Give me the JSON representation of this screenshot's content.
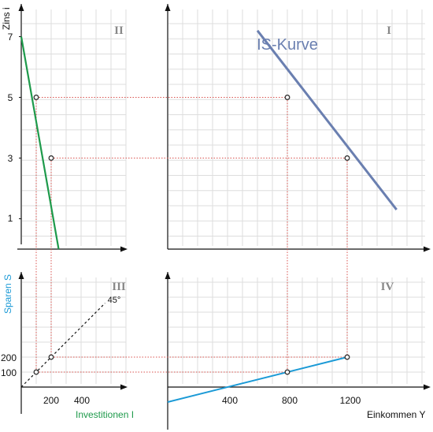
{
  "chart_data": {
    "type": "line",
    "title": "",
    "grid": true,
    "colors": {
      "is_curve": "#6a7fb0",
      "investment": "#1e9a4b",
      "savings": "#1b9ad6",
      "guide": "#d9534f",
      "axis": "#111111",
      "grid": "#dddddd",
      "quadrant_label": "#888888"
    },
    "quadrant_labels": [
      "I",
      "II",
      "III",
      "IV"
    ],
    "axis_labels": {
      "zins": "Zins i",
      "sparen": "Sparen S",
      "investitionen": "Investitionen I",
      "einkommen": "Einkommen Y"
    },
    "ticks": {
      "zins": [
        "1",
        "3",
        "5",
        "7"
      ],
      "sparen": [
        "100",
        "200"
      ],
      "investitionen": [
        "200",
        "400"
      ],
      "einkommen": [
        "400",
        "800",
        "1200"
      ]
    },
    "annotations": {
      "is_label": "IS-Kurve",
      "diagonal_label": "45°"
    },
    "quadrants": {
      "I": {
        "name": "IS-Kurve",
        "x_label": "Einkommen Y",
        "y_label": "Zins i",
        "points": [
          {
            "x": 800,
            "y": 5
          },
          {
            "x": 1200,
            "y": 3
          }
        ],
        "line": [
          {
            "x": 600,
            "y": 7.2
          },
          {
            "x": 1530,
            "y": 1.3
          }
        ]
      },
      "II": {
        "name": "Investitionen I",
        "x_label": "Investitionen I",
        "y_label": "Zins i",
        "points": [
          {
            "x": 100,
            "y": 5
          },
          {
            "x": 200,
            "y": 3
          }
        ],
        "line": [
          {
            "x": 0,
            "y": 7
          },
          {
            "x": 250,
            "y": 0
          }
        ]
      },
      "III": {
        "name": "45°",
        "x_label": "Investitionen I",
        "y_label": "Sparen S",
        "points": [
          {
            "x": 100,
            "y": 100
          },
          {
            "x": 200,
            "y": 200
          }
        ],
        "line": [
          {
            "x": 0,
            "y": 0
          },
          {
            "x": 560,
            "y": 560
          }
        ]
      },
      "IV": {
        "name": "Sparen S",
        "x_label": "Einkommen Y",
        "y_label": "Sparen S",
        "points": [
          {
            "x": 800,
            "y": 100
          },
          {
            "x": 1200,
            "y": 200
          }
        ],
        "line": [
          {
            "x": 0,
            "y": -100
          },
          {
            "x": 1200,
            "y": 200
          }
        ]
      }
    },
    "guides": [
      {
        "from": "II",
        "x": 100,
        "y": 5,
        "to": "I",
        "tx": 800,
        "ty": 5
      },
      {
        "from": "II",
        "x": 200,
        "y": 3,
        "to": "I",
        "tx": 1200,
        "ty": 3
      }
    ]
  }
}
